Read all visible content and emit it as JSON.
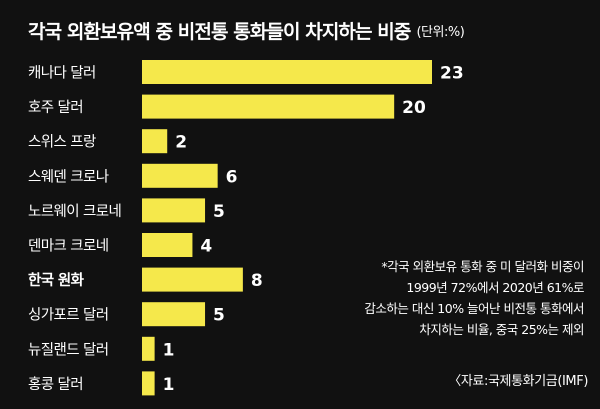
{
  "header": {
    "title": "각국 외환보유액 중 비전통 통화들이 차지하는 비중",
    "unit": "(단위:%)"
  },
  "chart_data": {
    "type": "bar",
    "orientation": "horizontal",
    "categories": [
      "캐나다 달러",
      "호주 달러",
      "스위스 프랑",
      "스웨덴 크로나",
      "노르웨이 크로네",
      "덴마크 크로네",
      "한국 원화",
      "싱가포르 달러",
      "뉴질랜드 달러",
      "홍콩 달러"
    ],
    "values": [
      23,
      20,
      2,
      6,
      5,
      4,
      8,
      5,
      1,
      1
    ],
    "value_labels": [
      "23",
      "20",
      "2",
      "6",
      "5",
      "4",
      "8",
      "5",
      "1",
      "1"
    ],
    "highlight_category": "한국 원화",
    "xlim": [
      0,
      23
    ],
    "grid": false,
    "legend": "none",
    "bar_color": "#f5e84b"
  },
  "footnote": {
    "lines": [
      "*각국 외환보유 통화 중 미 달러화 비중이",
      "1999년 72%에서 2020년 61%로",
      "감소하는 대신 10% 늘어난 비전통 통화에서",
      "차지하는 비율, 중국 25%는 제외"
    ]
  },
  "source": "〈자료:국제통화기금(IMF)"
}
